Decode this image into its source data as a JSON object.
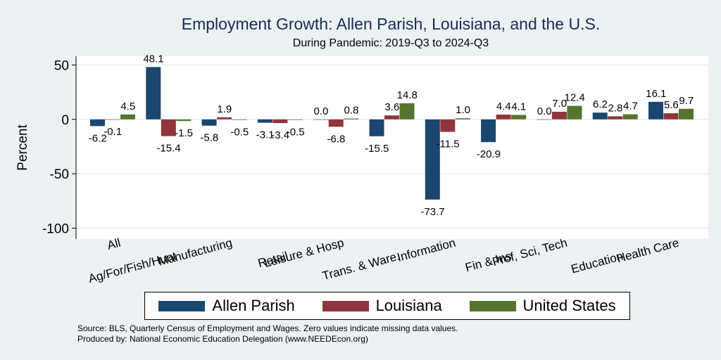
{
  "colors": {
    "background": "#eaf2f3",
    "plot_area": "#ffffff",
    "title": "#1a2a5a",
    "series": [
      "#1a476f",
      "#90353b",
      "#55752f"
    ]
  },
  "chart_data": {
    "type": "bar",
    "title": "Employment Growth: Allen Parish, Louisiana, and the U.S.",
    "subtitle": "During Pandemic: 2019-Q3 to 2024-Q3",
    "ylabel": "Percent",
    "xlabel": "",
    "ylim": [
      -110,
      58
    ],
    "yticks": [
      50,
      0,
      -50,
      -100
    ],
    "ytick_labels": [
      "50",
      "0",
      "-50",
      "-100"
    ],
    "grid": true,
    "legend_position": "bottom",
    "categories": [
      "All",
      "Ag/For/Fish/Hunt",
      "Manufacturing",
      "Retail",
      "Leisure & Hosp",
      "Trans. & Ware.",
      "Information",
      "Fin & Ins",
      "Prof, Sci, Tech",
      "Education",
      "Health Care"
    ],
    "series": [
      {
        "name": "Allen Parish",
        "values": [
          -6.2,
          48.1,
          -5.8,
          -3.1,
          0.0,
          -15.5,
          -73.7,
          -20.9,
          0.0,
          6.2,
          16.1
        ],
        "labels": [
          "-6.2",
          "48.1",
          "-5.8",
          "-3.1",
          "0.0",
          "-15.5",
          "-73.7",
          "-20.9",
          "0.0",
          "6.2",
          "16.1"
        ]
      },
      {
        "name": "Louisiana",
        "values": [
          -0.1,
          -15.4,
          1.9,
          -3.4,
          -6.8,
          3.6,
          -11.5,
          4.4,
          7.0,
          2.8,
          5.6
        ],
        "labels": [
          "-0.1",
          "-15.4",
          "1.9",
          "-3.4",
          "-6.8",
          "3.6",
          "-11.5",
          "4.4",
          "7.0",
          "2.8",
          "5.6"
        ]
      },
      {
        "name": "United States",
        "values": [
          4.5,
          -1.5,
          -0.5,
          -0.5,
          0.8,
          14.8,
          1.0,
          4.1,
          12.4,
          4.7,
          9.7
        ],
        "labels": [
          "4.5",
          "-1.5",
          "-0.5",
          "-0.5",
          "0.8",
          "14.8",
          "1.0",
          "4.1",
          "12.4",
          "4.7",
          "9.7"
        ]
      }
    ]
  },
  "legend": {
    "items": [
      {
        "label": "Allen Parish"
      },
      {
        "label": "Louisiana"
      },
      {
        "label": "United States"
      }
    ]
  },
  "notes": {
    "source": "Source: BLS, Quarterly Census of Employment and Wages. Zero values indicate missing data values.",
    "produced_by": "Produced by: National Economic Education Delegation (www.NEEDEcon.org)"
  }
}
